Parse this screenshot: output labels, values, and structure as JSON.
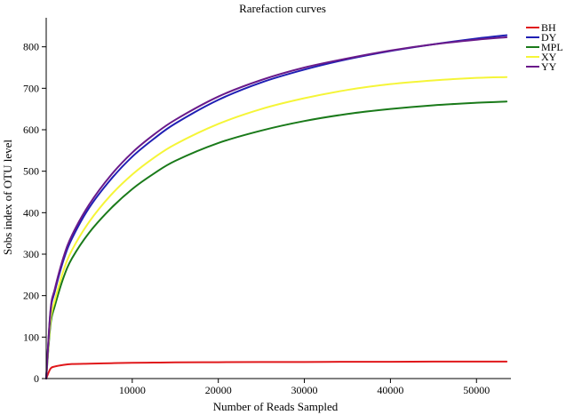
{
  "chart_data": {
    "type": "line",
    "title": "Rarefaction curves",
    "xlabel": "Number of Reads Sampled",
    "ylabel": "Sobs index of OTU level",
    "xlim": [
      0,
      54000
    ],
    "ylim": [
      0,
      870
    ],
    "xticks": [
      10000,
      20000,
      30000,
      40000,
      50000
    ],
    "yticks": [
      0,
      100,
      200,
      300,
      400,
      500,
      600,
      700,
      800
    ],
    "x": [
      0,
      500,
      1000,
      2000,
      3000,
      5000,
      7500,
      10000,
      12500,
      15000,
      20000,
      25000,
      30000,
      35000,
      40000,
      45000,
      50000,
      53500
    ],
    "legend_position": "top-right",
    "series": [
      {
        "name": "BH",
        "color": "#e0181b",
        "values": [
          0,
          24,
          29,
          33,
          35,
          36,
          37,
          38,
          38.5,
          39,
          39.5,
          40,
          40,
          40.5,
          40.5,
          41,
          41,
          41
        ]
      },
      {
        "name": "DY",
        "color": "#1f1fb4",
        "values": [
          0,
          160,
          210,
          285,
          338,
          412,
          480,
          535,
          578,
          615,
          672,
          714,
          745,
          770,
          790,
          806,
          820,
          828
        ]
      },
      {
        "name": "MPL",
        "color": "#1a7a1a",
        "values": [
          0,
          130,
          175,
          243,
          290,
          352,
          410,
          457,
          494,
          525,
          568,
          598,
          621,
          638,
          650,
          659,
          665,
          668
        ]
      },
      {
        "name": "XY",
        "color": "#f5f538",
        "values": [
          0,
          140,
          188,
          260,
          310,
          378,
          442,
          492,
          532,
          565,
          614,
          650,
          676,
          696,
          710,
          719,
          725,
          727
        ]
      },
      {
        "name": "YY",
        "color": "#6a1a8a",
        "values": [
          0,
          165,
          216,
          292,
          346,
          420,
          490,
          545,
          588,
          624,
          680,
          720,
          750,
          772,
          791,
          806,
          817,
          823
        ]
      }
    ]
  }
}
